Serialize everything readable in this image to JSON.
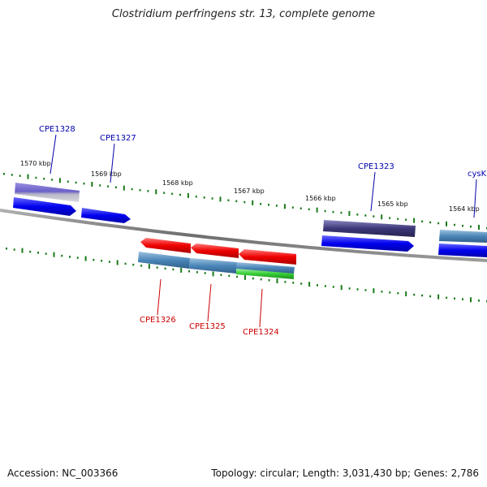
{
  "title": "Clostridium perfringens str. 13, complete genome",
  "footer": {
    "accession": "Accession: NC_003366",
    "summary": "Topology: circular; Length: 3,031,430 bp; Genes: 2,786"
  },
  "colors": {
    "axis": "#888888",
    "tick": "#1a7a1a",
    "forward_label": "#0000aa",
    "reverse_label": "#cc0000",
    "forward_gene": "#0000ee",
    "reverse_gene": "#ee0000"
  },
  "ruler": {
    "outer_labels": [
      "1570 kbp",
      "1569 kbp",
      "1568 kbp",
      "1567 kbp",
      "1566 kbp",
      "1565 kbp",
      "1564 kbp"
    ]
  },
  "genes": {
    "forward_labels": [
      "CPE1328",
      "CPE1327",
      "CPE1323",
      "cysK"
    ],
    "reverse_labels": [
      "CPE1326",
      "CPE1325",
      "CPE1324"
    ]
  }
}
